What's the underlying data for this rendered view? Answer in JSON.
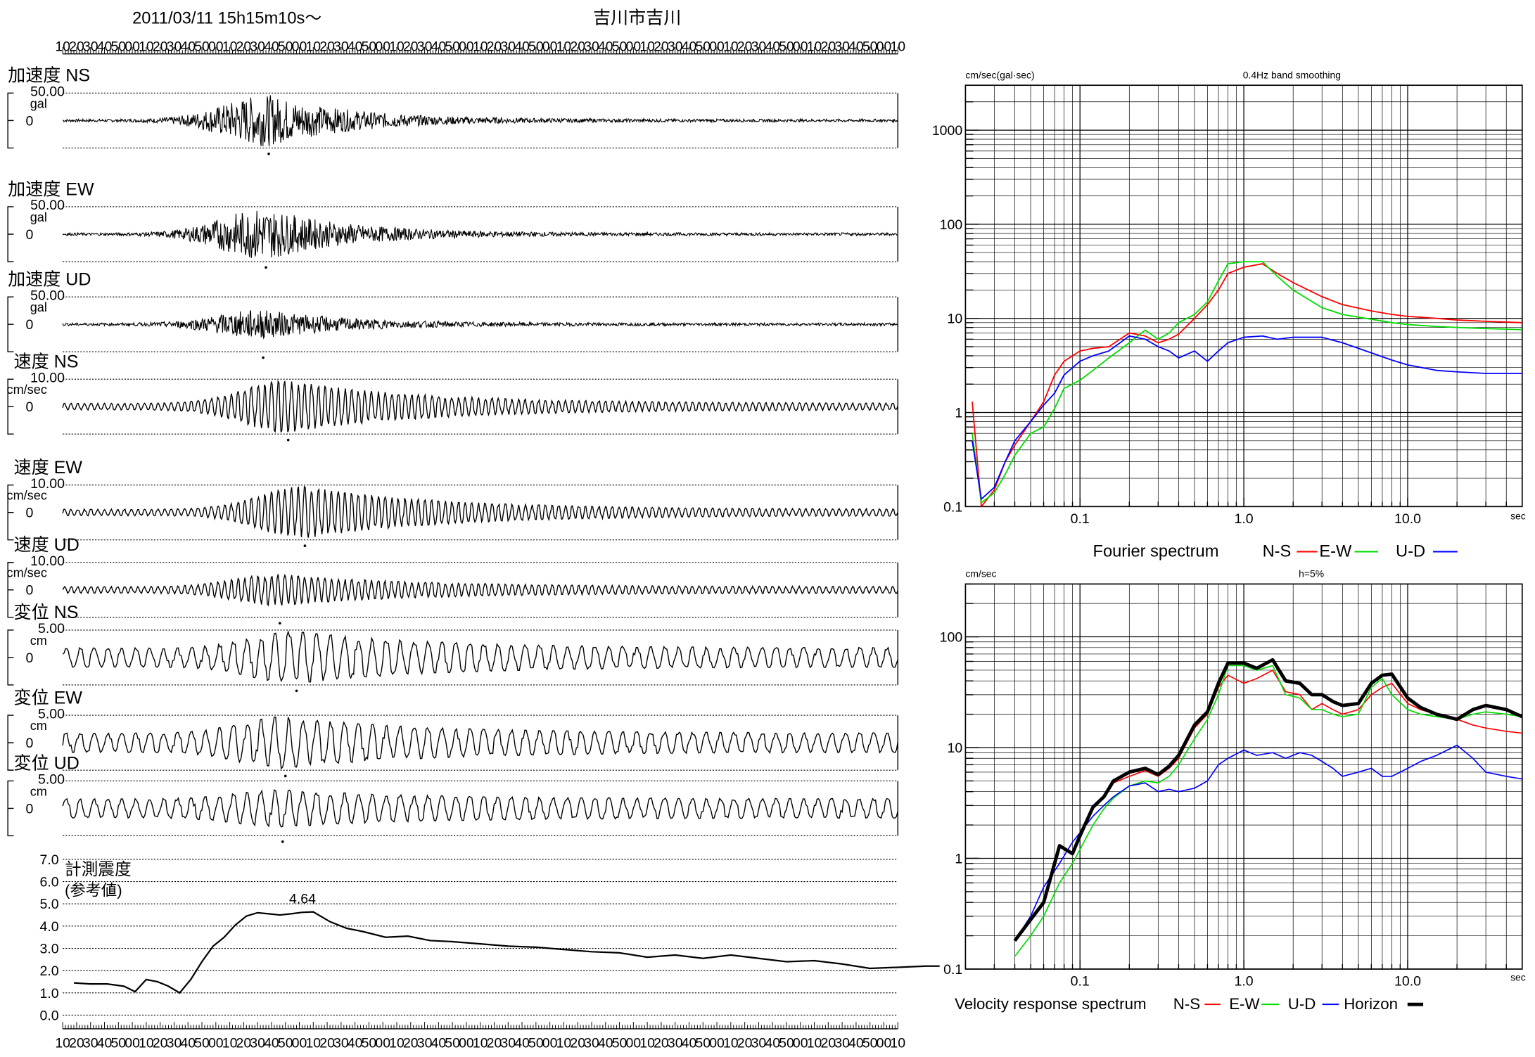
{
  "header": {
    "datetime": "2011/03/11  15h15m10s～",
    "station": "吉川市吉川"
  },
  "time_ticks": [
    "10",
    "20",
    "30",
    "40",
    "50",
    "00",
    "10",
    "20",
    "30",
    "40",
    "50",
    "00",
    "10",
    "20",
    "30",
    "40",
    "50",
    "00",
    "10",
    "20",
    "30",
    "40",
    "50",
    "00",
    "10",
    "20",
    "30",
    "40",
    "50",
    "00",
    "10",
    "20",
    "30",
    "40",
    "50",
    "00",
    "10",
    "20",
    "30",
    "40",
    "50",
    "00",
    "10",
    "20",
    "30",
    "40",
    "50",
    "00",
    "10",
    "20",
    "30",
    "40",
    "50",
    "00",
    "10",
    "20",
    "30",
    "40",
    "50",
    "00",
    "10"
  ],
  "colors": {
    "ns": "#ff0000",
    "ew": "#00dd00",
    "ud": "#0000ff",
    "horizon": "#000000",
    "wave": "#000000",
    "grid": "#000000"
  },
  "chart_data": [
    {
      "type": "line",
      "kind": "waveform-set",
      "panels": [
        {
          "title": "加速度 NS",
          "max_label": "50.00",
          "unit": "gal",
          "zero_label": "0",
          "peak_second": 74
        },
        {
          "title": "加速度 EW",
          "max_label": "50.00",
          "unit": "gal",
          "zero_label": "0",
          "peak_second": 73
        },
        {
          "title": "加速度 UD",
          "max_label": "50.00",
          "unit": "gal",
          "zero_label": "0",
          "peak_second": 72
        },
        {
          "title": "速度 NS",
          "max_label": "10.00",
          "unit": "cm/sec",
          "zero_label": "0",
          "peak_second": 81
        },
        {
          "title": "速度 EW",
          "max_label": "10.00",
          "unit": "cm/sec",
          "zero_label": "0",
          "peak_second": 87
        },
        {
          "title": "速度 UD",
          "max_label": "10.00",
          "unit": "cm/sec",
          "zero_label": "0",
          "peak_second": 78
        },
        {
          "title": "変位 NS",
          "max_label": "5.00",
          "unit": "cm",
          "zero_label": "0",
          "peak_second": 84
        },
        {
          "title": "変位 EW",
          "max_label": "5.00",
          "unit": "cm",
          "zero_label": "0",
          "peak_second": 80
        },
        {
          "title": "変位 UD",
          "max_label": "5.00",
          "unit": "cm",
          "zero_label": "0",
          "peak_second": 79
        }
      ]
    },
    {
      "type": "line",
      "title": "計測震度",
      "subtitle": "(参考値)",
      "peak_label": "4.64",
      "ylim": [
        0,
        7
      ],
      "y_ticks": [
        "0.0",
        "1.0",
        "2.0",
        "3.0",
        "4.0",
        "5.0",
        "6.0",
        "7.0"
      ],
      "x_seconds": [
        4,
        10,
        16,
        22,
        26,
        30,
        34,
        38,
        42,
        46,
        50,
        54,
        58,
        62,
        66,
        70,
        74,
        78,
        82,
        86,
        90,
        96,
        102,
        108,
        116,
        124,
        132,
        140,
        150,
        160,
        170,
        180,
        190,
        200,
        210,
        220,
        230,
        240,
        250,
        260,
        270,
        280,
        290,
        300,
        310,
        315
      ],
      "values": [
        1.45,
        1.4,
        1.4,
        1.3,
        1.05,
        1.6,
        1.5,
        1.3,
        1.0,
        1.6,
        2.4,
        3.1,
        3.5,
        4.05,
        4.45,
        4.6,
        4.55,
        4.5,
        4.55,
        4.62,
        4.64,
        4.2,
        3.9,
        3.75,
        3.5,
        3.55,
        3.35,
        3.3,
        3.2,
        3.1,
        3.05,
        2.95,
        2.85,
        2.8,
        2.6,
        2.7,
        2.55,
        2.7,
        2.55,
        2.4,
        2.45,
        2.3,
        2.1,
        2.15,
        2.2,
        2.2
      ]
    },
    {
      "type": "line",
      "title": "Fourier spectrum",
      "y_unit": "cm/sec(gal·sec)",
      "note": "0.4Hz band smoothing",
      "x_unit": "sec",
      "x_scale": "log",
      "y_scale": "log",
      "xlim": [
        0.02,
        50
      ],
      "ylim": [
        0.1,
        3000
      ],
      "x_tick_labels": [
        "0.1",
        "1.0",
        "10.0"
      ],
      "y_tick_labels": [
        "0.1",
        "1",
        "10",
        "100",
        "1000"
      ],
      "legend": [
        "N-S",
        "E-W",
        "U-D"
      ],
      "x": [
        0.022,
        0.025,
        0.03,
        0.035,
        0.04,
        0.05,
        0.06,
        0.07,
        0.08,
        0.1,
        0.12,
        0.15,
        0.2,
        0.25,
        0.3,
        0.35,
        0.4,
        0.5,
        0.6,
        0.7,
        0.8,
        1.0,
        1.3,
        1.6,
        2,
        3,
        4,
        6,
        8,
        10,
        15,
        20,
        30,
        50
      ],
      "series": [
        {
          "name": "N-S",
          "values": [
            1.3,
            0.1,
            0.15,
            0.3,
            0.45,
            0.8,
            1.3,
            2.5,
            3.5,
            4.5,
            4.8,
            5.0,
            7.0,
            6.5,
            5.5,
            6.0,
            6.8,
            10,
            14,
            20,
            30,
            35,
            38,
            30,
            24,
            17,
            14,
            12,
            11,
            10.5,
            10,
            9.6,
            9.3,
            9.0
          ]
        },
        {
          "name": "E-W",
          "values": [
            0.6,
            0.11,
            0.14,
            0.22,
            0.35,
            0.6,
            0.7,
            1.1,
            1.8,
            2.2,
            2.8,
            3.8,
            5.5,
            7.5,
            6.0,
            7.0,
            9.0,
            11,
            15,
            25,
            38,
            40,
            40,
            28,
            20,
            13,
            11,
            9.8,
            9.0,
            8.6,
            8.2,
            8.0,
            7.8,
            7.6
          ]
        },
        {
          "name": "U-D",
          "values": [
            0.5,
            0.12,
            0.16,
            0.3,
            0.5,
            0.8,
            1.2,
            1.6,
            2.5,
            3.5,
            4.0,
            4.5,
            6.5,
            6.0,
            5.0,
            4.5,
            3.8,
            4.5,
            3.5,
            4.5,
            5.5,
            6.3,
            6.5,
            6.0,
            6.3,
            6.3,
            5.5,
            4.3,
            3.6,
            3.2,
            2.8,
            2.7,
            2.6,
            2.6
          ]
        }
      ]
    },
    {
      "type": "line",
      "title": "Velocity response spectrum",
      "y_unit": "cm/sec",
      "note": "h=5%",
      "x_unit": "sec",
      "x_scale": "log",
      "y_scale": "log",
      "xlim": [
        0.02,
        50
      ],
      "ylim": [
        0.1,
        300
      ],
      "x_tick_labels": [
        "0.1",
        "1.0",
        "10.0"
      ],
      "y_tick_labels": [
        "0.1",
        "1",
        "10",
        "100"
      ],
      "legend": [
        "N-S",
        "E-W",
        "U-D",
        "Horizon"
      ],
      "x": [
        0.04,
        0.05,
        0.06,
        0.075,
        0.09,
        0.1,
        0.12,
        0.14,
        0.16,
        0.2,
        0.25,
        0.3,
        0.35,
        0.4,
        0.5,
        0.6,
        0.7,
        0.8,
        1.0,
        1.2,
        1.5,
        1.8,
        2.2,
        2.6,
        3,
        3.5,
        4,
        5,
        6,
        7,
        8,
        10,
        12,
        15,
        20,
        25,
        30,
        40,
        50
      ],
      "series": [
        {
          "name": "N-S",
          "values": [
            0.18,
            0.28,
            0.4,
            1.3,
            1.1,
            1.5,
            2.8,
            3.5,
            4.8,
            5.5,
            6.2,
            5.5,
            6.5,
            8.0,
            15,
            20,
            35,
            45,
            38,
            42,
            50,
            32,
            30,
            22,
            25,
            22,
            20,
            22,
            30,
            35,
            38,
            25,
            22,
            20,
            18,
            16,
            15,
            14,
            13.5
          ]
        },
        {
          "name": "E-W",
          "values": [
            0.13,
            0.2,
            0.3,
            0.6,
            0.9,
            1.2,
            2.0,
            2.8,
            3.5,
            4.5,
            5.0,
            4.8,
            5.5,
            7.0,
            12,
            18,
            30,
            55,
            55,
            50,
            55,
            30,
            28,
            22,
            22,
            20,
            19,
            20,
            35,
            42,
            30,
            22,
            20,
            19,
            18,
            20,
            21,
            20,
            19
          ]
        },
        {
          "name": "U-D",
          "values": [
            0.18,
            0.3,
            0.55,
            0.9,
            1.4,
            1.7,
            2.4,
            3.0,
            3.6,
            4.5,
            4.8,
            4.0,
            4.2,
            4.0,
            4.3,
            5.0,
            7.0,
            8.0,
            9.5,
            8.5,
            9.0,
            8.0,
            9.0,
            8.5,
            7.5,
            6.5,
            5.5,
            6.0,
            6.5,
            5.5,
            5.5,
            6.5,
            7.5,
            8.5,
            10.5,
            8.0,
            6.0,
            5.5,
            5.2
          ]
        },
        {
          "name": "Horizon",
          "values": [
            0.18,
            0.28,
            0.4,
            1.3,
            1.1,
            1.6,
            2.9,
            3.6,
            5.0,
            6.0,
            6.5,
            5.7,
            6.8,
            8.5,
            16,
            21,
            38,
            58,
            58,
            52,
            62,
            40,
            38,
            30,
            30,
            26,
            24,
            25,
            38,
            45,
            46,
            28,
            23,
            20,
            18,
            22,
            24,
            22,
            19
          ]
        }
      ]
    }
  ]
}
